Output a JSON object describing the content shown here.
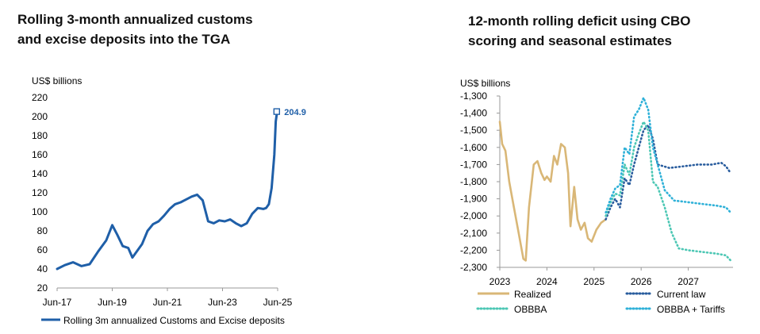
{
  "charts": {
    "left": {
      "title_line1": "Rolling 3-month annualized customs",
      "title_line2": "and excise deposits into the TGA",
      "unit_label": "US$ billions",
      "callout": "204.9"
    },
    "right": {
      "title_line1": "12-month rolling deficit using CBO",
      "title_line2": "scoring and seasonal estimates",
      "unit_label": "US$ billions"
    }
  },
  "colors": {
    "navy": "#1f5fa8",
    "gold": "#d9b777",
    "dark_blue_dots": "#2a5d9e",
    "teal": "#4cc7b4",
    "light_blue_dots": "#2fb1d8"
  },
  "chart_data": [
    {
      "type": "line",
      "title": "Rolling 3-month annualized customs and excise deposits into the TGA",
      "ylabel": "US$ billions",
      "ylim": [
        20,
        220
      ],
      "yticks": [
        20,
        40,
        60,
        80,
        100,
        120,
        140,
        160,
        180,
        200,
        220
      ],
      "xlim": [
        2017.42,
        2025.42
      ],
      "xticks": [
        {
          "x": 2017.42,
          "label": "Jun-17"
        },
        {
          "x": 2019.42,
          "label": "Jun-19"
        },
        {
          "x": 2021.42,
          "label": "Jun-21"
        },
        {
          "x": 2023.42,
          "label": "Jun-23"
        },
        {
          "x": 2025.42,
          "label": "Jun-25"
        }
      ],
      "grid": false,
      "legend": "bottom",
      "annotation": {
        "x": 2025.4,
        "y": 204.9,
        "label": "204.9"
      },
      "series": [
        {
          "name": "Rolling 3m annualized Customs and Excise deposits",
          "color": "#1f5fa8",
          "x": [
            2017.42,
            2017.7,
            2018.0,
            2018.3,
            2018.6,
            2018.9,
            2019.2,
            2019.42,
            2019.6,
            2019.8,
            2020.0,
            2020.15,
            2020.3,
            2020.5,
            2020.7,
            2020.9,
            2021.1,
            2021.3,
            2021.5,
            2021.7,
            2021.9,
            2022.1,
            2022.3,
            2022.5,
            2022.7,
            2022.9,
            2023.1,
            2023.3,
            2023.5,
            2023.7,
            2023.9,
            2024.1,
            2024.3,
            2024.5,
            2024.7,
            2024.9,
            2025.0,
            2025.1,
            2025.2,
            2025.3,
            2025.35,
            2025.4
          ],
          "y": [
            40,
            44,
            47,
            43,
            45,
            58,
            70,
            86,
            76,
            64,
            62,
            52,
            58,
            66,
            80,
            87,
            90,
            96,
            103,
            108,
            110,
            113,
            116,
            118,
            112,
            90,
            88,
            91,
            90,
            92,
            88,
            85,
            88,
            98,
            104,
            103,
            104,
            108,
            125,
            160,
            195,
            204.9
          ]
        }
      ]
    },
    {
      "type": "line",
      "title": "12-month rolling deficit using CBO scoring and seasonal estimates",
      "ylabel": "US$ billions",
      "ylim": [
        -2300,
        -1300
      ],
      "yticks": [
        -2300,
        -2200,
        -2100,
        -2000,
        -1900,
        -1800,
        -1700,
        -1600,
        -1500,
        -1400,
        -1300
      ],
      "xlim": [
        2023.0,
        2027.95
      ],
      "xticks": [
        {
          "x": 2023,
          "label": "2023"
        },
        {
          "x": 2024,
          "label": "2024"
        },
        {
          "x": 2025,
          "label": "2025"
        },
        {
          "x": 2026,
          "label": "2026"
        },
        {
          "x": 2027,
          "label": "2027"
        }
      ],
      "grid": false,
      "legend": "bottom",
      "series": [
        {
          "name": "Realized",
          "style": "solid",
          "color": "#d9b777",
          "x": [
            2023.0,
            2023.05,
            2023.12,
            2023.2,
            2023.3,
            2023.4,
            2023.5,
            2023.55,
            2023.62,
            2023.72,
            2023.8,
            2023.88,
            2023.95,
            2024.0,
            2024.08,
            2024.15,
            2024.22,
            2024.3,
            2024.38,
            2024.45,
            2024.5,
            2024.58,
            2024.65,
            2024.72,
            2024.8,
            2024.87,
            2024.95,
            2025.05,
            2025.15,
            2025.25
          ],
          "y": [
            -1450,
            -1580,
            -1620,
            -1800,
            -1950,
            -2100,
            -2250,
            -2260,
            -1950,
            -1700,
            -1680,
            -1750,
            -1790,
            -1770,
            -1800,
            -1650,
            -1700,
            -1580,
            -1600,
            -1750,
            -2060,
            -1830,
            -2020,
            -2080,
            -2040,
            -2130,
            -2150,
            -2080,
            -2040,
            -2020
          ]
        },
        {
          "name": "Current law",
          "style": "dotted",
          "color": "#2a5d9e",
          "x": [
            2025.25,
            2025.35,
            2025.45,
            2025.55,
            2025.65,
            2025.75,
            2025.85,
            2025.95,
            2026.05,
            2026.15,
            2026.25,
            2026.35,
            2026.6,
            2026.9,
            2027.2,
            2027.5,
            2027.7,
            2027.8,
            2027.9
          ],
          "y": [
            -2020,
            -1950,
            -1900,
            -1950,
            -1780,
            -1820,
            -1700,
            -1600,
            -1500,
            -1470,
            -1550,
            -1700,
            -1720,
            -1710,
            -1700,
            -1700,
            -1690,
            -1710,
            -1750
          ]
        },
        {
          "name": "OBBBA",
          "style": "dotted",
          "color": "#4cc7b4",
          "x": [
            2025.25,
            2025.35,
            2025.45,
            2025.55,
            2025.65,
            2025.75,
            2025.85,
            2025.95,
            2026.05,
            2026.15,
            2026.25,
            2026.35,
            2026.5,
            2026.65,
            2026.8,
            2027.0,
            2027.3,
            2027.6,
            2027.8,
            2027.9
          ],
          "y": [
            -2000,
            -1920,
            -1870,
            -1880,
            -1700,
            -1760,
            -1600,
            -1520,
            -1450,
            -1500,
            -1800,
            -1830,
            -1950,
            -2100,
            -2190,
            -2200,
            -2210,
            -2220,
            -2230,
            -2260
          ]
        },
        {
          "name": "OBBBA + Tariffs",
          "style": "dotted",
          "color": "#2fb1d8",
          "x": [
            2025.25,
            2025.35,
            2025.45,
            2025.55,
            2025.65,
            2025.75,
            2025.85,
            2025.95,
            2026.05,
            2026.15,
            2026.25,
            2026.35,
            2026.5,
            2026.7,
            2027.0,
            2027.3,
            2027.6,
            2027.8,
            2027.9
          ],
          "y": [
            -1980,
            -1900,
            -1840,
            -1820,
            -1600,
            -1640,
            -1420,
            -1380,
            -1310,
            -1380,
            -1600,
            -1700,
            -1850,
            -1910,
            -1920,
            -1930,
            -1940,
            -1950,
            -1980
          ]
        }
      ]
    }
  ]
}
